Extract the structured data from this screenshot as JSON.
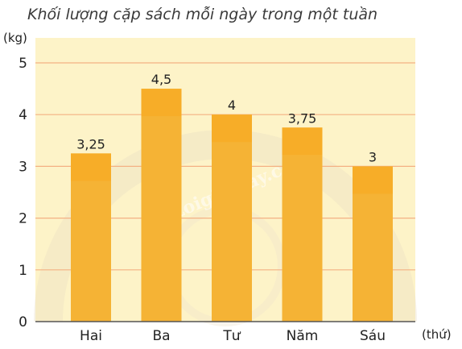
{
  "chart_data": {
    "type": "bar",
    "title": "Khối lượng cặp sách mỗi ngày trong một tuần",
    "ylabel": "(kg)",
    "xlabel": "(thứ)",
    "categories": [
      "Hai",
      "Ba",
      "Tư",
      "Năm",
      "Sáu"
    ],
    "values": [
      3.25,
      4.5,
      4,
      3.75,
      3
    ],
    "value_labels": [
      "3,25",
      "4,5",
      "4",
      "3,75",
      "3"
    ],
    "ylim": [
      0,
      5
    ],
    "yticks": [
      "0",
      "1",
      "2",
      "3",
      "4",
      "5"
    ],
    "grid": true,
    "colors": {
      "plot_background": "#fdf3c8",
      "gridline": "#f4b183",
      "bar": "#f5b335",
      "bar_top": "#f7a81e",
      "axis": "#555555"
    }
  },
  "watermark": "Loigiaihay.com"
}
